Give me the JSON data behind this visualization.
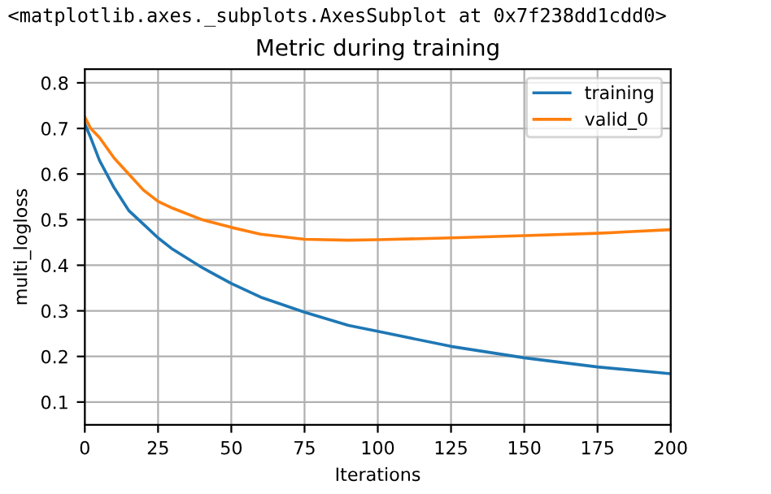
{
  "chart_data": {
    "type": "line",
    "title": "Metric during training",
    "xlabel": "Iterations",
    "ylabel": "multi_logloss",
    "annotations": [
      "<matplotlib.axes._subplots.AxesSubplot at 0x7f238dd1cdd0>"
    ],
    "x": [
      0,
      2,
      5,
      10,
      15,
      20,
      25,
      30,
      40,
      50,
      60,
      75,
      90,
      100,
      125,
      150,
      175,
      200
    ],
    "series": [
      {
        "name": "training",
        "color": "#1f77b4",
        "values": [
          0.71,
          0.68,
          0.63,
          0.57,
          0.52,
          0.49,
          0.46,
          0.435,
          0.395,
          0.36,
          0.33,
          0.297,
          0.268,
          0.255,
          0.222,
          0.197,
          0.177,
          0.162
        ]
      },
      {
        "name": "valid_0",
        "color": "#ff7f0e",
        "values": [
          0.725,
          0.7,
          0.68,
          0.635,
          0.6,
          0.565,
          0.54,
          0.525,
          0.5,
          0.483,
          0.468,
          0.457,
          0.455,
          0.456,
          0.46,
          0.465,
          0.47,
          0.478
        ]
      }
    ],
    "xlim": [
      0,
      200
    ],
    "xticks": [
      0,
      25,
      50,
      75,
      100,
      125,
      150,
      175,
      200
    ],
    "ylim": [
      0.05,
      0.83
    ],
    "yticks": [
      0.1,
      0.2,
      0.3,
      0.4,
      0.5,
      0.6,
      0.7,
      0.8
    ],
    "grid": true,
    "legend": "top right"
  }
}
